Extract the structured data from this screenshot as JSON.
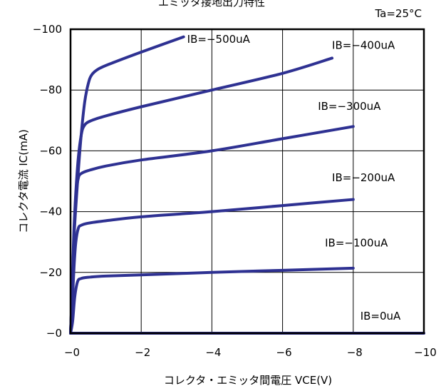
{
  "chart_data": {
    "type": "line",
    "title": "エミッタ接地出力特性",
    "condition": "Ta=25°C",
    "xlabel": "コレクタ・エミッタ間電圧 VCE(V)",
    "ylabel": "コレクタ電流 IC(mA)",
    "xlim": [
      0,
      -10
    ],
    "ylim": [
      0,
      -100
    ],
    "x_ticks": [
      0,
      -2,
      -4,
      -6,
      -8,
      -10
    ],
    "y_ticks": [
      0,
      -20,
      -40,
      -60,
      -80,
      -100
    ],
    "x_tick_labels": [
      "−0",
      "−2",
      "−4",
      "−6",
      "−8",
      "−10"
    ],
    "y_tick_labels": [
      "−0",
      "−20",
      "−40",
      "−60",
      "−80",
      "−100"
    ],
    "grid": true,
    "line_color": "#2e3192",
    "series": [
      {
        "name": "IB=0uA",
        "points": [
          [
            0,
            0
          ],
          [
            -10,
            0
          ]
        ]
      },
      {
        "name": "IB=−100uA",
        "points": [
          [
            0,
            0
          ],
          [
            -0.06,
            -4
          ],
          [
            -0.12,
            -12
          ],
          [
            -0.2,
            -17
          ],
          [
            -0.3,
            -18
          ],
          [
            -0.5,
            -18.4
          ],
          [
            -1,
            -18.8
          ],
          [
            -2,
            -19.2
          ],
          [
            -4,
            -20
          ],
          [
            -6,
            -20.7
          ],
          [
            -8,
            -21.4
          ]
        ]
      },
      {
        "name": "IB=−200uA",
        "points": [
          [
            0,
            0
          ],
          [
            -0.05,
            -10
          ],
          [
            -0.1,
            -22
          ],
          [
            -0.15,
            -30
          ],
          [
            -0.22,
            -34.5
          ],
          [
            -0.3,
            -35.5
          ],
          [
            -0.5,
            -36.2
          ],
          [
            -1,
            -37
          ],
          [
            -2,
            -38.3
          ],
          [
            -4,
            -40
          ],
          [
            -6,
            -42
          ],
          [
            -8,
            -44
          ]
        ]
      },
      {
        "name": "IB=−300uA",
        "points": [
          [
            0,
            0
          ],
          [
            -0.05,
            -15
          ],
          [
            -0.1,
            -32
          ],
          [
            -0.15,
            -45
          ],
          [
            -0.22,
            -51
          ],
          [
            -0.3,
            -52.5
          ],
          [
            -0.5,
            -53.5
          ],
          [
            -1,
            -55
          ],
          [
            -2,
            -57
          ],
          [
            -4,
            -60
          ],
          [
            -6,
            -64
          ],
          [
            -8,
            -68
          ]
        ]
      },
      {
        "name": "IB=−400uA",
        "points": [
          [
            0,
            0
          ],
          [
            -0.05,
            -15
          ],
          [
            -0.1,
            -35
          ],
          [
            -0.2,
            -55
          ],
          [
            -0.3,
            -65
          ],
          [
            -0.4,
            -68.5
          ],
          [
            -0.6,
            -70
          ],
          [
            -1,
            -71.5
          ],
          [
            -2,
            -74.5
          ],
          [
            -4,
            -80
          ],
          [
            -6,
            -85.5
          ],
          [
            -7.4,
            -90.5
          ]
        ]
      },
      {
        "name": "IB=−500uA",
        "points": [
          [
            0,
            0
          ],
          [
            -0.05,
            -15
          ],
          [
            -0.1,
            -32
          ],
          [
            -0.2,
            -50
          ],
          [
            -0.3,
            -65
          ],
          [
            -0.4,
            -76
          ],
          [
            -0.5,
            -82
          ],
          [
            -0.6,
            -85
          ],
          [
            -0.8,
            -87
          ],
          [
            -1.2,
            -89
          ],
          [
            -2,
            -92.5
          ],
          [
            -3.2,
            -97.5
          ]
        ]
      }
    ],
    "label_positions": [
      {
        "series": "IB=0uA",
        "at": [
          -8.2,
          -4.5
        ]
      },
      {
        "series": "IB=−100uA",
        "at": [
          -7.2,
          -28.5
        ]
      },
      {
        "series": "IB=−200uA",
        "at": [
          -7.4,
          -50
        ]
      },
      {
        "series": "IB=−300uA",
        "at": [
          -7.0,
          -73.5
        ]
      },
      {
        "series": "IB=−400uA",
        "at": [
          -7.4,
          -93.5
        ]
      },
      {
        "series": "IB=−500uA",
        "at": [
          -3.3,
          -95.5
        ]
      }
    ]
  }
}
